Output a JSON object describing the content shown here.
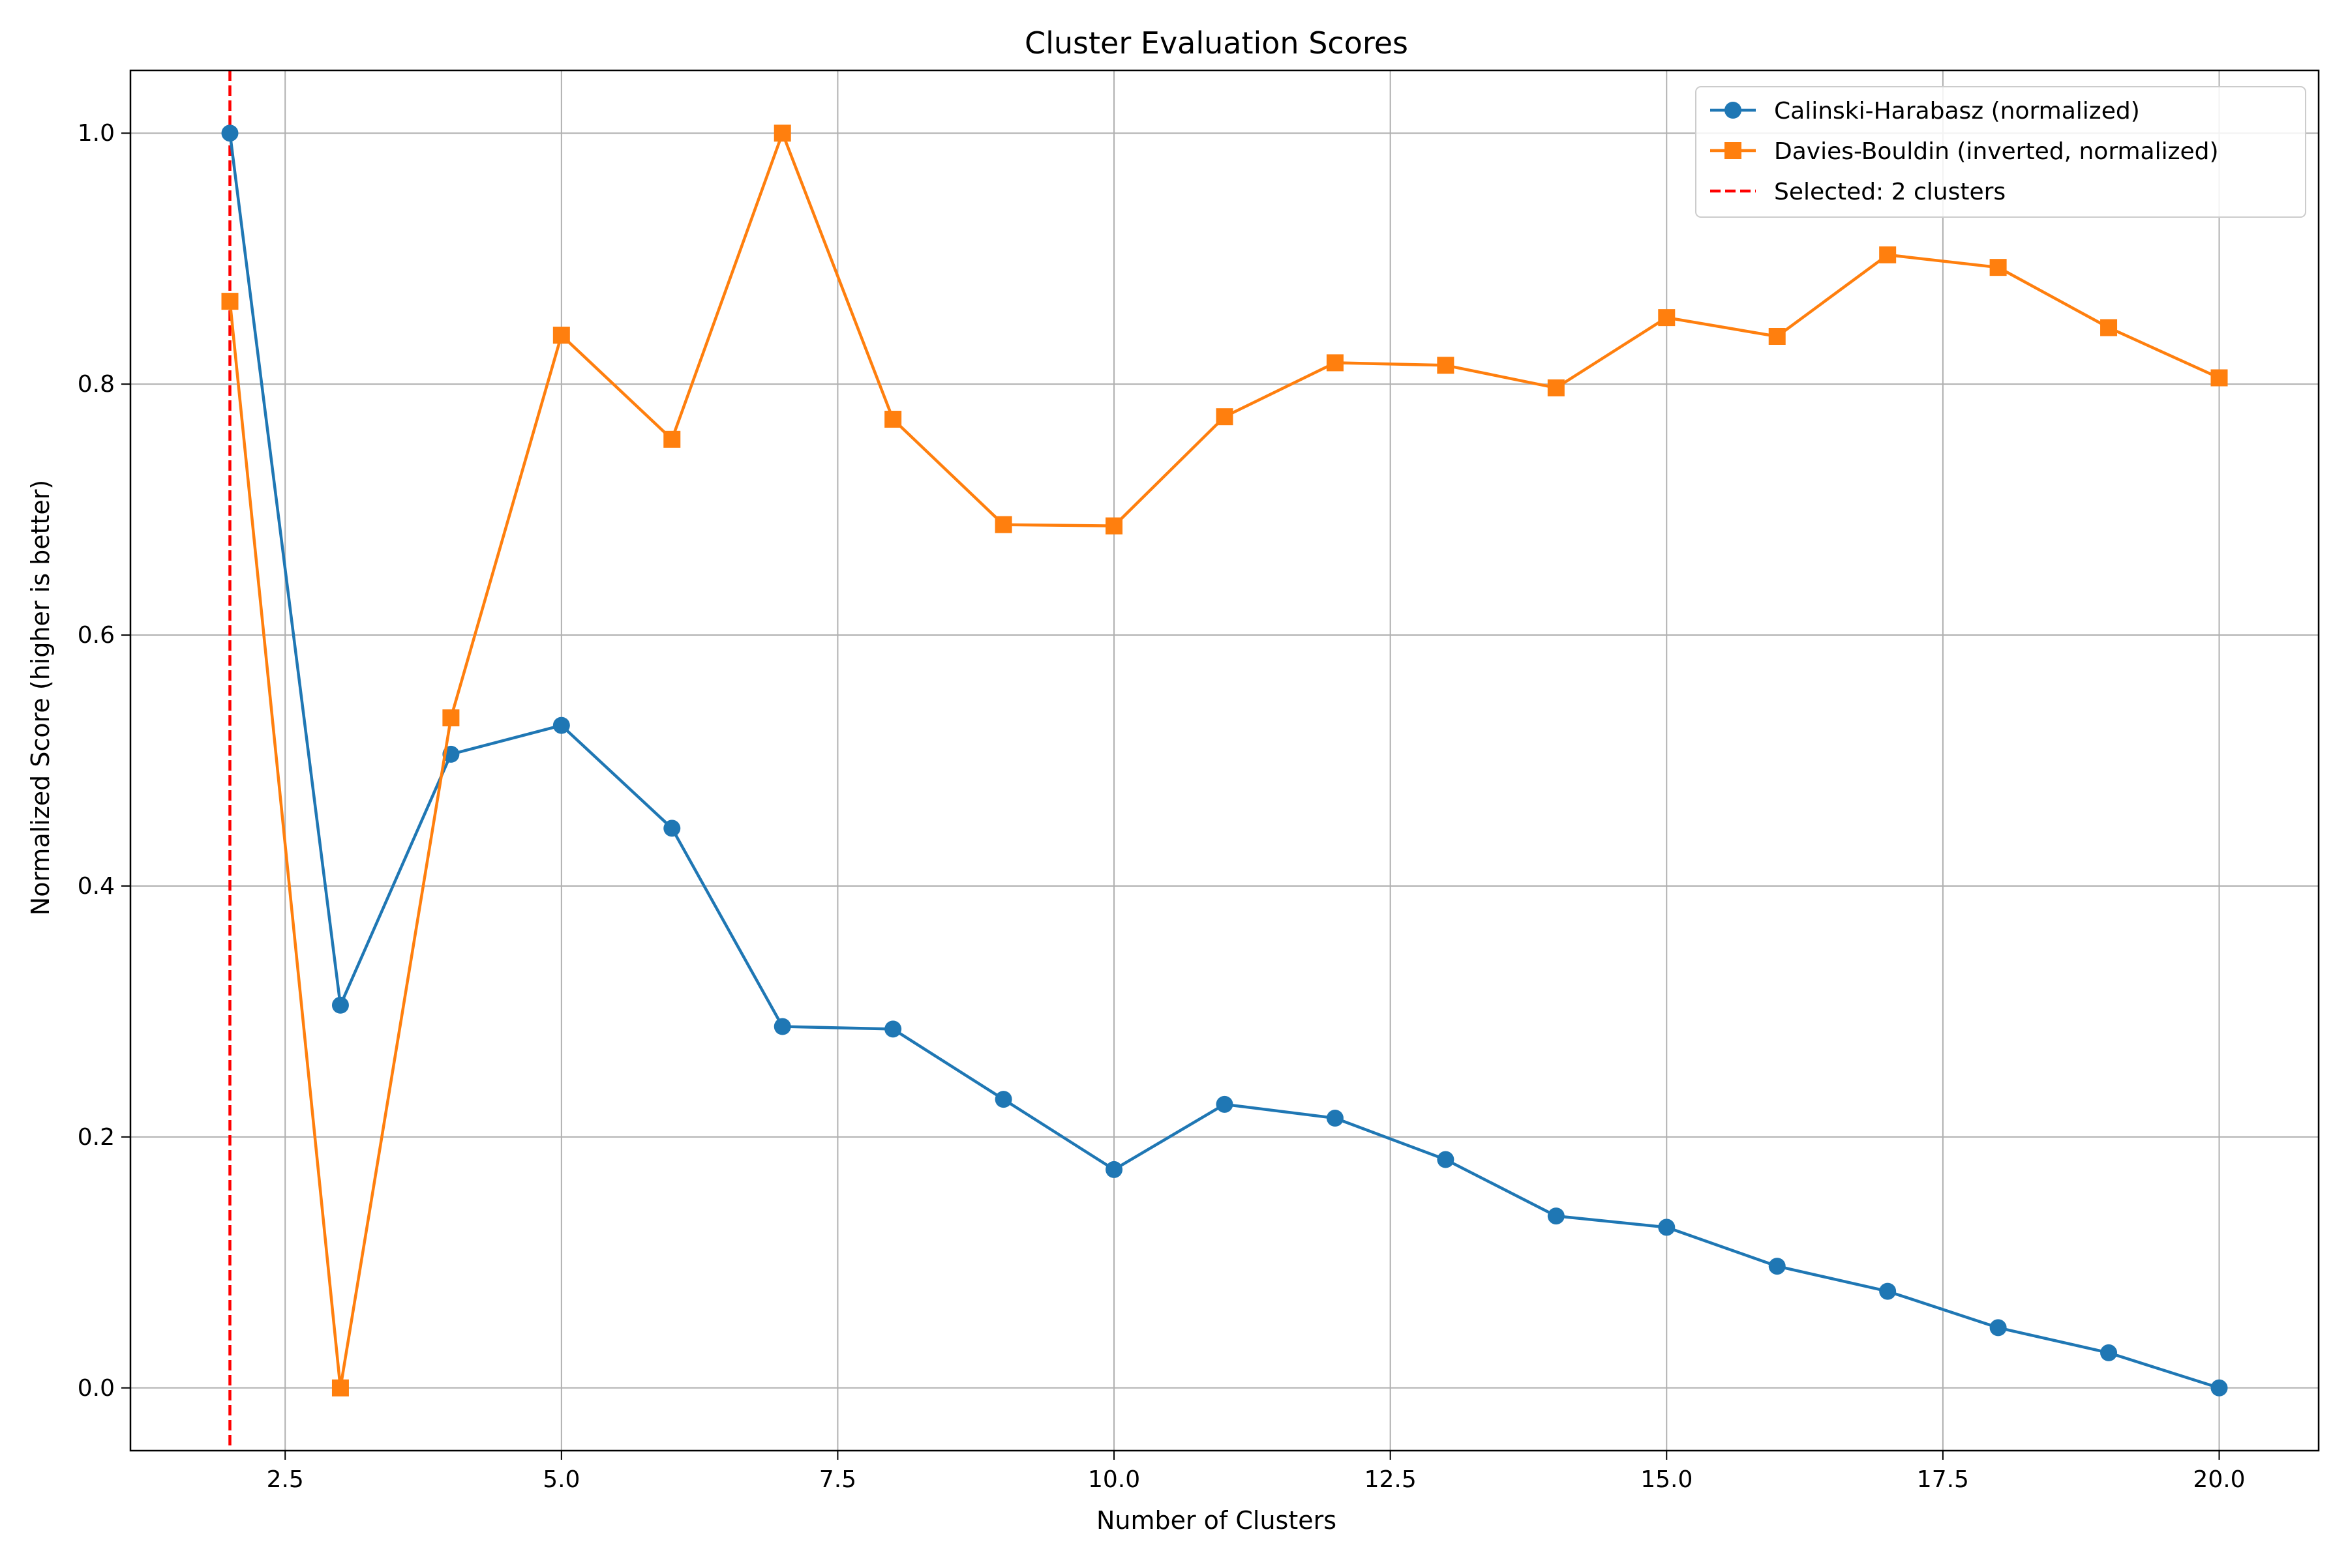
{
  "chart_data": {
    "type": "line",
    "title": "Cluster Evaluation Scores",
    "xlabel": "Number of Clusters",
    "ylabel": "Normalized Score (higher is better)",
    "xlim": [
      1.1,
      20.9
    ],
    "ylim": [
      -0.05,
      1.05
    ],
    "xticks": [
      2.5,
      5.0,
      7.5,
      10.0,
      12.5,
      15.0,
      17.5,
      20.0
    ],
    "xtick_labels": [
      "2.5",
      "5.0",
      "7.5",
      "10.0",
      "12.5",
      "15.0",
      "17.5",
      "20.0"
    ],
    "yticks": [
      0.0,
      0.2,
      0.4,
      0.6,
      0.8,
      1.0
    ],
    "ytick_labels": [
      "0.0",
      "0.2",
      "0.4",
      "0.6",
      "0.8",
      "1.0"
    ],
    "grid": true,
    "legend_position": "top-right",
    "x": [
      2,
      3,
      4,
      5,
      6,
      7,
      8,
      9,
      10,
      11,
      12,
      13,
      14,
      15,
      16,
      17,
      18,
      19,
      20
    ],
    "series": [
      {
        "name": "Calinski-Harabasz (normalized)",
        "color": "#1f77b4",
        "marker": "circle",
        "values": [
          1.0,
          0.305,
          0.505,
          0.528,
          0.446,
          0.288,
          0.286,
          0.23,
          0.174,
          0.226,
          0.215,
          0.182,
          0.137,
          0.128,
          0.097,
          0.077,
          0.048,
          0.028,
          0.0
        ]
      },
      {
        "name": "Davies-Bouldin (inverted, normalized)",
        "color": "#ff7f0e",
        "marker": "square",
        "values": [
          0.866,
          0.0,
          0.534,
          0.839,
          0.756,
          1.0,
          0.772,
          0.688,
          0.687,
          0.774,
          0.817,
          0.815,
          0.797,
          0.853,
          0.838,
          0.903,
          0.893,
          0.845,
          0.805
        ]
      }
    ],
    "vline": {
      "x": 2,
      "name": "Selected: 2 clusters",
      "color": "#ff0000",
      "style": "dashed"
    }
  }
}
